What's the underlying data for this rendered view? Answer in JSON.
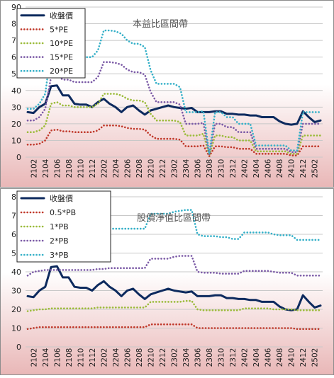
{
  "colors": {
    "close": "#0d2a5e",
    "red": "#c0392b",
    "green": "#9bbb3a",
    "purple": "#7b5aa6",
    "cyan": "#35b0c8",
    "grid": "#c8c8c8",
    "frame": "#8c8c8c",
    "bg_top": "#ffffff",
    "bg_bottom": "#e9b7b7"
  },
  "x_ticks": [
    "2102",
    "2104",
    "2106",
    "2108",
    "2110",
    "2112",
    "2202",
    "2204",
    "2206",
    "2208",
    "2210",
    "2212",
    "2302",
    "2304",
    "2306",
    "2308",
    "2310",
    "2312",
    "2402",
    "2404",
    "2406",
    "2408",
    "2410",
    "2412",
    "2502"
  ],
  "chart_data": [
    {
      "type": "line",
      "title": "本益比區間帶",
      "xlabel": "",
      "ylabel": "",
      "ylim": [
        0,
        90
      ],
      "yticks": [
        0,
        10,
        20,
        30,
        40,
        50,
        60,
        70,
        80,
        90
      ],
      "grid": true,
      "legend_position": "top-left",
      "x": [
        "2101",
        "2102",
        "2103",
        "2104",
        "2105",
        "2106",
        "2107",
        "2108",
        "2109",
        "2110",
        "2111",
        "2112",
        "2201",
        "2202",
        "2203",
        "2204",
        "2205",
        "2206",
        "2207",
        "2208",
        "2209",
        "2210",
        "2211",
        "2212",
        "2301",
        "2302",
        "2303",
        "2304",
        "2305",
        "2306",
        "2307",
        "2308",
        "2309",
        "2310",
        "2311",
        "2312",
        "2401",
        "2402",
        "2403",
        "2404",
        "2405",
        "2406",
        "2407",
        "2408",
        "2409",
        "2410",
        "2411",
        "2412",
        "2501",
        "2502",
        "2503"
      ],
      "series": [
        {
          "name": "收盤價",
          "style": "solid",
          "values": [
            27,
            26.5,
            30,
            32,
            42.5,
            43,
            37,
            37,
            32,
            31.5,
            31.5,
            30,
            33,
            35,
            32,
            30,
            27,
            30,
            31,
            28,
            25.5,
            28,
            29,
            30,
            31,
            30,
            29.5,
            29,
            29.5,
            27,
            27,
            27,
            27.5,
            27.5,
            26,
            26,
            25.5,
            25.5,
            25,
            25,
            24,
            24,
            24,
            21.5,
            20,
            19.5,
            20,
            27.5,
            24,
            21,
            22
          ]
        },
        {
          "name": "5*PE",
          "style": "dotted",
          "values": [
            7.5,
            7.5,
            8,
            10,
            16,
            16.5,
            15.5,
            15.5,
            15,
            15,
            15,
            15,
            16,
            19,
            19,
            19,
            18.5,
            17.5,
            17,
            17,
            16.5,
            13,
            11,
            11,
            11,
            11,
            10.5,
            6.5,
            6.5,
            6.5,
            7,
            0.5,
            6.5,
            6.5,
            6,
            6,
            5,
            5,
            5,
            2,
            2,
            2,
            2,
            2,
            2,
            1,
            1,
            6.5,
            6.5,
            6.5,
            6.5
          ]
        },
        {
          "name": "10*PE",
          "style": "dotted",
          "values": [
            15,
            15,
            16,
            19,
            32,
            33,
            31,
            31,
            30,
            30,
            30,
            30,
            32,
            38,
            38,
            38,
            37,
            35,
            34,
            34,
            33,
            26,
            22,
            22,
            22,
            22,
            21,
            13,
            13,
            13,
            14,
            1,
            13,
            13,
            12,
            12,
            10,
            10,
            10,
            3.5,
            3.5,
            3.5,
            3.5,
            3.5,
            3.5,
            2,
            2,
            13,
            13,
            13,
            13
          ]
        },
        {
          "name": "15*PE",
          "style": "dotted",
          "values": [
            22,
            22,
            24,
            29,
            48,
            49,
            46.5,
            46.5,
            45,
            45,
            45,
            45,
            48,
            57,
            57,
            56.5,
            55.5,
            52.5,
            51,
            51,
            49.5,
            39,
            33,
            33,
            33,
            33,
            31.5,
            20,
            20,
            20,
            20.5,
            1.5,
            20,
            20,
            18,
            18,
            15,
            15,
            15,
            5,
            5,
            5,
            5,
            5,
            5,
            3,
            3,
            20,
            20,
            20,
            20
          ]
        },
        {
          "name": "20*PE",
          "style": "dotted",
          "values": [
            29,
            29,
            32,
            38,
            64,
            66,
            62,
            62,
            60,
            60,
            60,
            60,
            64,
            76,
            76,
            75.5,
            74,
            70,
            68,
            68,
            66,
            52,
            44,
            44,
            44,
            44,
            42,
            27,
            27,
            27,
            27.5,
            2,
            27,
            27,
            24,
            24,
            20,
            20,
            20,
            7,
            7,
            7,
            7,
            7,
            7,
            4,
            4,
            27,
            27,
            27,
            27
          ]
        }
      ]
    },
    {
      "type": "line",
      "title": "股價淨值比區間帶",
      "xlabel": "",
      "ylabel": "",
      "ylim": [
        0,
        80
      ],
      "yticks": [
        0,
        10,
        20,
        30,
        40,
        50,
        60,
        70,
        80
      ],
      "grid": true,
      "legend_position": "top-left",
      "x": [
        "2101",
        "2102",
        "2103",
        "2104",
        "2105",
        "2106",
        "2107",
        "2108",
        "2109",
        "2110",
        "2111",
        "2112",
        "2201",
        "2202",
        "2203",
        "2204",
        "2205",
        "2206",
        "2207",
        "2208",
        "2209",
        "2210",
        "2211",
        "2212",
        "2301",
        "2302",
        "2303",
        "2304",
        "2305",
        "2306",
        "2307",
        "2308",
        "2309",
        "2310",
        "2311",
        "2312",
        "2401",
        "2402",
        "2403",
        "2404",
        "2405",
        "2406",
        "2407",
        "2408",
        "2409",
        "2410",
        "2411",
        "2412",
        "2501",
        "2502",
        "2503"
      ],
      "series": [
        {
          "name": "收盤價",
          "style": "solid",
          "values": [
            27,
            26.5,
            30,
            32,
            42.5,
            43,
            37,
            37,
            32,
            31.5,
            31.5,
            30,
            33,
            35,
            32,
            30,
            27,
            30,
            31,
            28,
            25.5,
            28,
            29,
            30,
            31,
            30,
            29.5,
            29,
            29.5,
            27,
            27,
            27,
            27.5,
            27.5,
            26,
            26,
            25.5,
            25.5,
            25,
            25,
            24,
            24,
            24,
            21.5,
            20,
            19.5,
            20,
            27.5,
            24,
            21,
            22
          ]
        },
        {
          "name": "0.5*PB",
          "style": "dotted",
          "values": [
            9.5,
            10,
            10.5,
            10.5,
            10.5,
            10.5,
            10.5,
            10.5,
            10.5,
            10.5,
            10.5,
            10.5,
            10.5,
            10.5,
            10.5,
            10.5,
            10.5,
            10.5,
            10.5,
            10.5,
            10.5,
            12,
            12,
            12,
            12,
            12,
            12,
            12,
            12,
            10,
            10,
            10,
            10,
            10,
            10,
            10,
            10,
            10,
            10,
            10,
            10,
            10,
            10,
            10,
            10,
            10,
            9.5,
            9.5,
            9.5,
            9.5,
            9.5
          ]
        },
        {
          "name": "1*PB",
          "style": "dotted",
          "values": [
            19,
            19.5,
            20,
            20,
            20.5,
            20.5,
            20.5,
            20.5,
            20.5,
            20.5,
            20.5,
            20.5,
            21,
            21,
            21,
            21,
            21,
            21,
            21,
            21,
            21,
            24,
            24,
            24,
            24,
            24,
            24,
            24.5,
            24.5,
            20,
            19.5,
            19.5,
            19.5,
            19.5,
            19.5,
            19.5,
            19.5,
            20.5,
            20.5,
            20.5,
            20.5,
            20.5,
            20,
            20,
            20,
            20,
            19.5,
            19.5,
            19.5,
            19.5,
            19.5
          ]
        },
        {
          "name": "2*PB",
          "style": "dotted",
          "values": [
            38,
            40,
            40.5,
            41,
            41,
            41,
            41,
            41,
            41,
            41,
            41,
            41,
            41.5,
            41.5,
            42,
            42,
            42,
            42,
            42,
            42,
            42,
            47,
            47,
            47,
            47,
            48,
            48.5,
            48.5,
            48.5,
            40,
            39.5,
            39.5,
            39.5,
            39,
            39,
            39,
            39,
            40.5,
            40.5,
            40.5,
            40.5,
            40.5,
            40,
            39.5,
            39.5,
            39.5,
            38,
            38,
            38,
            38,
            38
          ]
        },
        {
          "name": "3*PB",
          "style": "dotted",
          "values": [
            57,
            60,
            60.5,
            61,
            61,
            61,
            61,
            61,
            61,
            61,
            61,
            61,
            62,
            62,
            63,
            63,
            63,
            63,
            63,
            63,
            63,
            71,
            71,
            71,
            71,
            72,
            72.5,
            73,
            73,
            60,
            59,
            59,
            59,
            58.5,
            58.5,
            57.5,
            57.5,
            61,
            61,
            61,
            61,
            61,
            60,
            59.5,
            59.5,
            59.5,
            57,
            57,
            57,
            57,
            57
          ]
        }
      ]
    }
  ]
}
